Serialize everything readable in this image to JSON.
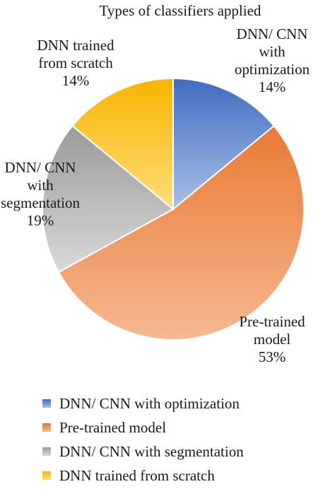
{
  "chart_data": {
    "type": "pie",
    "title": "Types of classifiers applied",
    "slices": [
      {
        "name": "DNN/ CNN with optimization",
        "value": 14,
        "label_lines": [
          "DNN/ CNN",
          "with",
          "optimization",
          "14%"
        ],
        "color": "#4472C4"
      },
      {
        "name": "Pre-trained model",
        "value": 53,
        "label_lines": [
          "Pre-trained",
          "model",
          "53%"
        ],
        "color": "#ED7D31"
      },
      {
        "name": "DNN/ CNN with segmentation",
        "value": 19,
        "label_lines": [
          "DNN/ CNN",
          "with",
          "segmentation",
          "19%"
        ],
        "color": "#A5A5A5"
      },
      {
        "name": "DNN trained from scratch",
        "value": 14,
        "label_lines": [
          "DNN trained",
          "from scratch",
          "14%"
        ],
        "color": "#FFC000"
      }
    ],
    "legend": {
      "placement": "bottom",
      "entries": [
        "DNN/ CNN with optimization",
        "Pre-trained model",
        "DNN/ CNN with segmentation",
        "DNN trained from scratch"
      ]
    }
  }
}
